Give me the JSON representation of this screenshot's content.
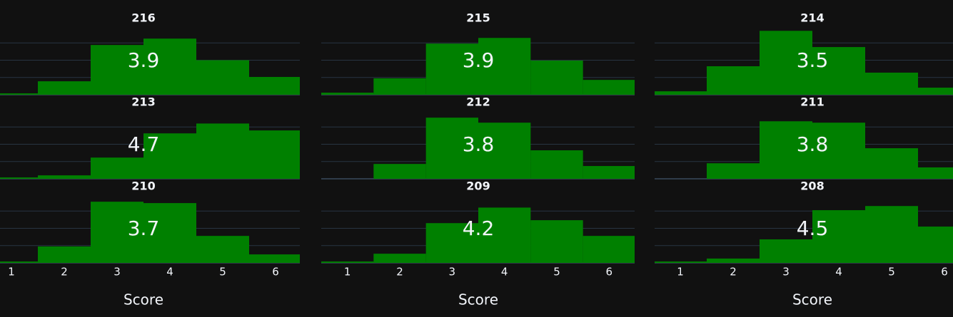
{
  "chart_data": [
    {
      "type": "histogram",
      "title": "216",
      "bins": [
        0.5,
        1.5,
        2.5,
        3.5,
        4.5,
        5.5,
        6.5
      ],
      "values": [
        0.08,
        0.78,
        2.88,
        3.25,
        2.0,
        1.03
      ],
      "annotation": "3.9",
      "color": "#008000",
      "xlim": [
        0.5,
        6.5
      ],
      "ylim": [
        0,
        4
      ],
      "yticks": [
        0,
        1,
        2,
        3
      ],
      "grid": true
    },
    {
      "type": "histogram",
      "title": "215",
      "bins": [
        0.5,
        1.5,
        2.5,
        3.5,
        4.5,
        5.5,
        6.5
      ],
      "values": [
        0.12,
        0.95,
        2.96,
        3.29,
        1.98,
        0.86
      ],
      "annotation": "3.9",
      "color": "#008000",
      "xlim": [
        0.5,
        6.5
      ],
      "ylim": [
        0,
        4
      ],
      "yticks": [
        0,
        1,
        2,
        3
      ],
      "grid": true
    },
    {
      "type": "histogram",
      "title": "214",
      "bins": [
        0.5,
        1.5,
        2.5,
        3.5,
        4.5,
        5.5,
        6.5
      ],
      "values": [
        0.2,
        1.65,
        3.7,
        2.76,
        1.28,
        0.41
      ],
      "annotation": "3.5",
      "color": "#008000",
      "xlim": [
        0.5,
        6.5
      ],
      "ylim": [
        0,
        4
      ],
      "yticks": [
        0,
        1,
        2,
        3
      ],
      "grid": true
    },
    {
      "type": "histogram",
      "title": "213",
      "bins": [
        0.5,
        1.5,
        2.5,
        3.5,
        4.5,
        5.5,
        6.5
      ],
      "values": [
        0.08,
        0.2,
        1.23,
        2.63,
        3.2,
        2.8
      ],
      "annotation": "4.7",
      "color": "#008000",
      "xlim": [
        0.5,
        6.5
      ],
      "ylim": [
        0,
        4
      ],
      "yticks": [
        0,
        1,
        2,
        3
      ],
      "grid": true
    },
    {
      "type": "histogram",
      "title": "212",
      "bins": [
        0.5,
        1.5,
        2.5,
        3.5,
        4.5,
        5.5,
        6.5
      ],
      "values": [
        0,
        0.86,
        3.54,
        3.25,
        1.65,
        0.74
      ],
      "annotation": "3.8",
      "color": "#008000",
      "xlim": [
        0.5,
        6.5
      ],
      "ylim": [
        0,
        4
      ],
      "yticks": [
        0,
        1,
        2,
        3
      ],
      "grid": true
    },
    {
      "type": "histogram",
      "title": "211",
      "bins": [
        0.5,
        1.5,
        2.5,
        3.5,
        4.5,
        5.5,
        6.5
      ],
      "values": [
        0,
        0.9,
        3.33,
        3.25,
        1.77,
        0.66
      ],
      "annotation": "3.8",
      "color": "#008000",
      "xlim": [
        0.5,
        6.5
      ],
      "ylim": [
        0,
        4
      ],
      "yticks": [
        0,
        1,
        2,
        3
      ],
      "grid": true
    },
    {
      "type": "histogram",
      "title": "210",
      "bins": [
        0.5,
        1.5,
        2.5,
        3.5,
        4.5,
        5.5,
        6.5
      ],
      "values": [
        0.08,
        0.95,
        3.54,
        3.46,
        1.56,
        0.49
      ],
      "annotation": "3.7",
      "color": "#008000",
      "xlim": [
        0.5,
        6.5
      ],
      "ylim": [
        0,
        4
      ],
      "yticks": [
        0,
        1,
        2,
        3
      ],
      "grid": true,
      "xticks": [
        1,
        2,
        3,
        4,
        5,
        6
      ],
      "xlabel": "Score"
    },
    {
      "type": "histogram",
      "title": "209",
      "bins": [
        0.5,
        1.5,
        2.5,
        3.5,
        4.5,
        5.5,
        6.5
      ],
      "values": [
        0.08,
        0.53,
        2.3,
        3.2,
        2.47,
        1.56
      ],
      "annotation": "4.2",
      "color": "#008000",
      "xlim": [
        0.5,
        6.5
      ],
      "ylim": [
        0,
        4
      ],
      "yticks": [
        0,
        1,
        2,
        3
      ],
      "grid": true,
      "xticks": [
        1,
        2,
        3,
        4,
        5,
        6
      ],
      "xlabel": "Score"
    },
    {
      "type": "histogram",
      "title": "208",
      "bins": [
        0.5,
        1.5,
        2.5,
        3.5,
        4.5,
        5.5,
        6.5
      ],
      "values": [
        0.08,
        0.25,
        1.36,
        3.05,
        3.29,
        2.1
      ],
      "annotation": "4.5",
      "color": "#008000",
      "xlim": [
        0.5,
        6.5
      ],
      "ylim": [
        0,
        4
      ],
      "yticks": [
        0,
        1,
        2,
        3
      ],
      "grid": true,
      "xticks": [
        1,
        2,
        3,
        4,
        5,
        6
      ],
      "xlabel": "Score"
    }
  ]
}
